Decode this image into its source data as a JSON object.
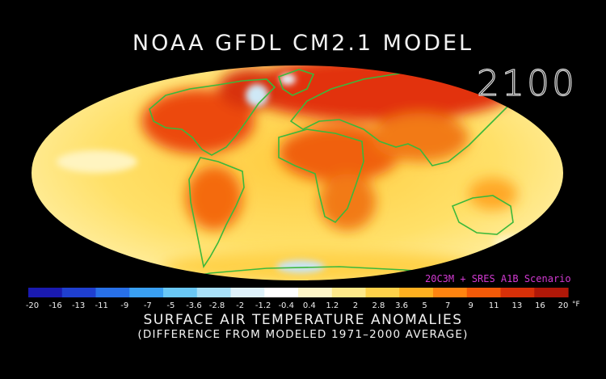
{
  "header": {
    "title": "NOAA GFDL CM2.1 MODEL",
    "year": "2100"
  },
  "scenario_label": "20C3M + SRES A1B Scenario",
  "colorbar": {
    "ticks": [
      "-20",
      "-16",
      "-13",
      "-11",
      "-9",
      "-7",
      "-5",
      "-3.6",
      "-2.8",
      "-2",
      "-1.2",
      "-0.4",
      "0.4",
      "1.2",
      "2",
      "2.8",
      "3.6",
      "5",
      "7",
      "9",
      "11",
      "13",
      "16",
      "20"
    ],
    "unit": "°F",
    "colors": [
      "#1a1ab0",
      "#1f3fd0",
      "#2870e8",
      "#3aa0f2",
      "#6ac8f6",
      "#a8e0f8",
      "#dff2fb",
      "#ffffff",
      "#fff6c8",
      "#ffe98a",
      "#ffd24a",
      "#ffb020",
      "#ff8410",
      "#f45a08",
      "#d83008",
      "#b01808"
    ]
  },
  "footer": {
    "title": "SURFACE AIR TEMPERATURE ANOMALIES",
    "subtitle": "(DIFFERENCE FROM MODELED 1971–2000 AVERAGE)"
  },
  "map": {
    "projection": "Mollweide",
    "coastline_color": "#3bb83b",
    "ocean_base_color": "#ffe063"
  }
}
